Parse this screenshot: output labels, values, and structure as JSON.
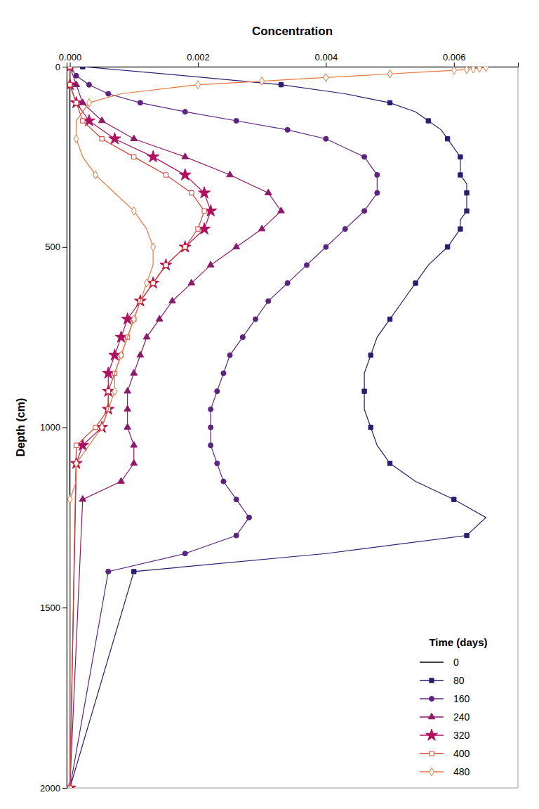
{
  "chart_data": {
    "type": "line",
    "xlabel": "Concentration",
    "ylabel": "Depth (cm)",
    "legend_title": "Time (days)",
    "legend": "lower right",
    "grid": false,
    "xlim": [
      -5e-05,
      0.007
    ],
    "ylim": [
      2000,
      0
    ],
    "xticks": [
      {
        "value": 0.0,
        "label": "0.000"
      },
      {
        "value": 0.002,
        "label": "0.002"
      },
      {
        "value": 0.004,
        "label": "0.004"
      },
      {
        "value": 0.006,
        "label": "0.006"
      }
    ],
    "yticks": [
      0,
      500,
      1000,
      1500,
      2000
    ],
    "series": [
      {
        "name": "0",
        "color": "#000000",
        "marker": "none",
        "line_style": "solid",
        "values": [
          0,
          5,
          10,
          2000
        ],
        "x": [
          0.0,
          0.0,
          0.0,
          0.0
        ]
      },
      {
        "name": "80",
        "color": "#2d1b6e",
        "marker": "square",
        "line_style": "solid",
        "values": [
          0,
          25,
          50,
          75,
          100,
          125,
          150,
          175,
          200,
          225,
          250,
          275,
          300,
          325,
          350,
          375,
          400,
          425,
          450,
          475,
          500,
          550,
          600,
          650,
          700,
          750,
          800,
          850,
          900,
          950,
          1000,
          1050,
          1100,
          1150,
          1200,
          1250,
          1300,
          1350,
          1400,
          2000
        ],
        "x": [
          0.0002,
          0.0018,
          0.0033,
          0.0043,
          0.005,
          0.0054,
          0.0056,
          0.0058,
          0.0059,
          0.006,
          0.0061,
          0.0061,
          0.0061,
          0.0062,
          0.0062,
          0.0062,
          0.0062,
          0.0061,
          0.0061,
          0.006,
          0.0059,
          0.0056,
          0.0054,
          0.0052,
          0.005,
          0.0048,
          0.0047,
          0.0046,
          0.0046,
          0.0046,
          0.0047,
          0.0048,
          0.005,
          0.0054,
          0.006,
          0.0065,
          0.0062,
          0.004,
          0.001,
          0.0
        ]
      },
      {
        "name": "160",
        "color": "#5c2480",
        "marker": "circle",
        "line_style": "solid",
        "values": [
          0,
          25,
          50,
          75,
          100,
          125,
          150,
          175,
          200,
          250,
          300,
          350,
          400,
          450,
          500,
          550,
          600,
          650,
          700,
          750,
          800,
          850,
          900,
          950,
          1000,
          1050,
          1100,
          1150,
          1200,
          1250,
          1300,
          1350,
          1400,
          2000
        ],
        "x": [
          0.0,
          0.0001,
          0.0003,
          0.0006,
          0.0011,
          0.0018,
          0.0026,
          0.0034,
          0.004,
          0.0046,
          0.0048,
          0.0048,
          0.0046,
          0.0043,
          0.004,
          0.0037,
          0.0034,
          0.0031,
          0.0029,
          0.0027,
          0.0025,
          0.0024,
          0.0023,
          0.0022,
          0.0022,
          0.0022,
          0.0023,
          0.0024,
          0.0026,
          0.0028,
          0.0026,
          0.0018,
          0.0006,
          0.0
        ]
      },
      {
        "name": "240",
        "color": "#8b1a6b",
        "marker": "triangle",
        "line_style": "solid",
        "values": [
          0,
          50,
          100,
          150,
          200,
          250,
          300,
          350,
          400,
          450,
          500,
          550,
          600,
          650,
          700,
          750,
          800,
          850,
          900,
          950,
          1000,
          1050,
          1100,
          1150,
          1200,
          2000
        ],
        "x": [
          0.0,
          0.0001,
          0.0002,
          0.0005,
          0.001,
          0.0018,
          0.0025,
          0.0031,
          0.0033,
          0.003,
          0.0026,
          0.0022,
          0.0019,
          0.0016,
          0.0014,
          0.0012,
          0.0011,
          0.001,
          0.0009,
          0.0009,
          0.0009,
          0.001,
          0.001,
          0.0008,
          0.0002,
          0.0
        ]
      },
      {
        "name": "320",
        "color": "#b01060",
        "marker": "star",
        "line_style": "solid",
        "values": [
          0,
          50,
          100,
          150,
          200,
          250,
          300,
          350,
          400,
          450,
          500,
          550,
          600,
          650,
          700,
          750,
          800,
          850,
          900,
          950,
          1000,
          1050,
          1100,
          2000
        ],
        "x": [
          0.0,
          0.0,
          0.0001,
          0.0003,
          0.0007,
          0.0013,
          0.0018,
          0.0021,
          0.0022,
          0.0021,
          0.0018,
          0.0015,
          0.0013,
          0.0011,
          0.0009,
          0.0008,
          0.0007,
          0.0006,
          0.0006,
          0.0006,
          0.0005,
          0.0002,
          0.0001,
          0.0
        ]
      },
      {
        "name": "400",
        "color": "#d44030",
        "marker": "square-open",
        "line_style": "solid",
        "values": [
          0,
          50,
          100,
          150,
          200,
          250,
          300,
          350,
          400,
          450,
          500,
          550,
          600,
          650,
          700,
          750,
          800,
          850,
          900,
          950,
          1000,
          1050,
          2000
        ],
        "x": [
          0.0,
          0.0,
          0.0001,
          0.0002,
          0.0005,
          0.001,
          0.0015,
          0.0019,
          0.0021,
          0.002,
          0.0018,
          0.0015,
          0.0013,
          0.0011,
          0.001,
          0.0009,
          0.0008,
          0.0007,
          0.0006,
          0.0006,
          0.0004,
          0.0001,
          0.0
        ]
      },
      {
        "name": "480",
        "color": "#e87840",
        "marker": "diamond-open",
        "line_style": "solid",
        "values": [
          0,
          1,
          2,
          3,
          4,
          5,
          6,
          7,
          8,
          9,
          10,
          15,
          20,
          25,
          30,
          35,
          40,
          45,
          50,
          75,
          100,
          150,
          200,
          250,
          300,
          350,
          400,
          450,
          500,
          550,
          600,
          650,
          700,
          750,
          800,
          850,
          900,
          950,
          1000,
          1050,
          1100,
          1150,
          1200,
          2000
        ],
        "x": [
          0.0065,
          0.0065,
          0.0065,
          0.0064,
          0.0064,
          0.0063,
          0.0063,
          0.0062,
          0.0062,
          0.0061,
          0.006,
          0.0055,
          0.005,
          0.0045,
          0.004,
          0.0035,
          0.003,
          0.0025,
          0.002,
          0.0008,
          0.0003,
          0.0001,
          0.0001,
          0.0002,
          0.0004,
          0.0007,
          0.001,
          0.0012,
          0.0013,
          0.0013,
          0.0012,
          0.0011,
          0.001,
          0.0009,
          0.0008,
          0.0007,
          0.0007,
          0.0006,
          0.0005,
          0.0003,
          0.0001,
          0.0001,
          0.0,
          0.0
        ]
      }
    ]
  }
}
